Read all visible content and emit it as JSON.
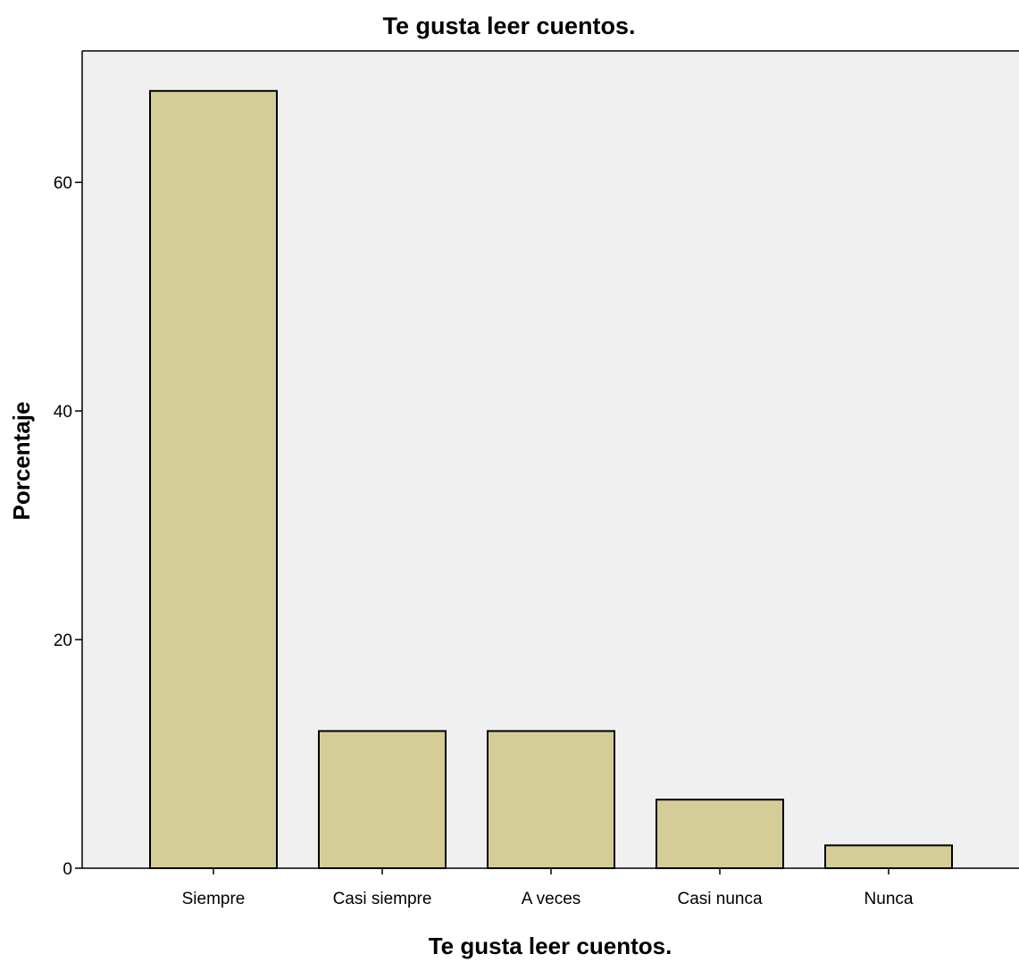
{
  "chart_data": {
    "type": "bar",
    "title": "Te gusta leer cuentos.",
    "xlabel": "Te gusta leer cuentos.",
    "ylabel": "Porcentaje",
    "categories": [
      "Siempre",
      "Casi siempre",
      "A veces",
      "Casi nunca",
      "Nunca"
    ],
    "values": [
      68,
      12,
      12,
      6,
      2
    ],
    "ylim": [
      0,
      71.5
    ],
    "yticks": [
      0,
      20,
      40,
      60
    ],
    "ytick_labels": [
      "0",
      "20",
      "40",
      "60"
    ],
    "grid": false,
    "legend": "none",
    "colors": {
      "bar_fill": "#d4cd98",
      "bar_stroke": "#000000",
      "plot_background": "#f0f0f0",
      "page_background": "#ffffff",
      "axis": "#000000"
    }
  }
}
